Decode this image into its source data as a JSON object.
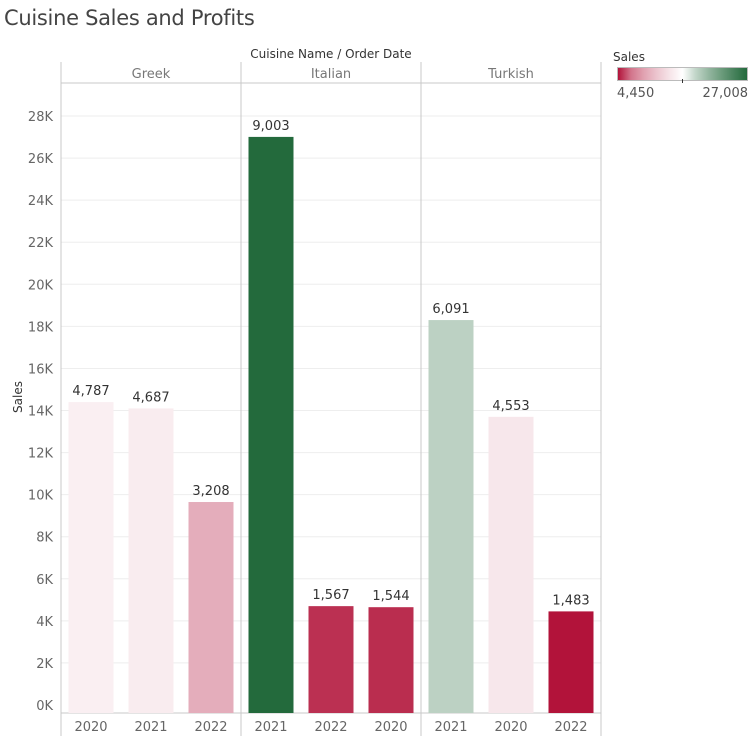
{
  "title": "Cuisine Sales and Profits",
  "chart_data": {
    "type": "bar",
    "header_title": "Cuisine Name / Order Date",
    "ylabel": "Sales",
    "ylim": [
      0,
      29000
    ],
    "y_ticks": [
      "0K",
      "2K",
      "4K",
      "6K",
      "8K",
      "10K",
      "12K",
      "14K",
      "16K",
      "18K",
      "20K",
      "22K",
      "24K",
      "26K",
      "28K"
    ],
    "grid": true,
    "panels": [
      {
        "name": "Greek",
        "bars": [
          {
            "x": "2020",
            "sales": 14400,
            "label": "4,787"
          },
          {
            "x": "2021",
            "sales": 14100,
            "label": "4,687"
          },
          {
            "x": "2022",
            "sales": 9650,
            "label": "3,208"
          }
        ]
      },
      {
        "name": "Italian",
        "bars": [
          {
            "x": "2021",
            "sales": 27008,
            "label": "9,003"
          },
          {
            "x": "2022",
            "sales": 4700,
            "label": "1,567"
          },
          {
            "x": "2020",
            "sales": 4650,
            "label": "1,544"
          }
        ]
      },
      {
        "name": "Turkish",
        "bars": [
          {
            "x": "2021",
            "sales": 18300,
            "label": "6,091"
          },
          {
            "x": "2020",
            "sales": 13700,
            "label": "4,553"
          },
          {
            "x": "2022",
            "sales": 4450,
            "label": "1,483"
          }
        ]
      }
    ],
    "color_legend": {
      "title": "Sales",
      "min": "4,450",
      "max": "27,008"
    },
    "colors": {
      "low": "#b2133a",
      "mid": "#ffffff",
      "high": "#236a3c",
      "grid": "#eeeeee",
      "border": "#c8c8c8"
    }
  }
}
